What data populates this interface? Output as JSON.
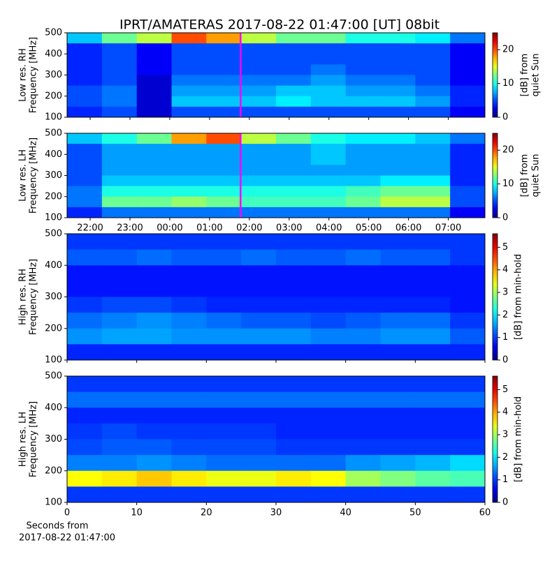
{
  "title": "IPRT/AMATERAS 2017-08-22 01:47:00 [UT]   08bit",
  "chart_data": [
    {
      "type": "heatmap",
      "ylabel": [
        "Low res. RH",
        "Frequency [MHz]"
      ],
      "xlim": [
        21.42,
        31.92
      ],
      "xticks": [
        {
          "value": 22,
          "label": "22:00"
        },
        {
          "value": 23,
          "label": "23:00"
        },
        {
          "value": 24,
          "label": "00:00"
        },
        {
          "value": 25,
          "label": "01:00"
        },
        {
          "value": 26,
          "label": "02:00"
        },
        {
          "value": 27,
          "label": "03:00"
        },
        {
          "value": 28,
          "label": "04:00"
        },
        {
          "value": 29,
          "label": "05:00"
        },
        {
          "value": 30,
          "label": "06:00"
        },
        {
          "value": 31,
          "label": "07:00"
        }
      ],
      "show_xticklabels": false,
      "ylim": [
        100,
        500
      ],
      "yticks": [
        100,
        200,
        300,
        400,
        500
      ],
      "marker_x": 25.78,
      "marker_color": "#ff00ff",
      "clim": [
        0,
        25
      ],
      "cticks": [
        0,
        10,
        20
      ],
      "clabel": [
        "[dB] from",
        "quiet Sun"
      ],
      "z": [
        [
          8,
          12,
          14,
          20,
          18,
          14,
          12,
          12,
          10,
          10,
          9,
          6
        ],
        [
          4,
          5,
          3,
          5,
          5,
          5,
          5,
          5,
          5,
          5,
          5,
          3
        ],
        [
          4,
          5,
          3,
          5,
          5,
          5,
          5,
          5,
          5,
          5,
          5,
          3
        ],
        [
          4,
          5,
          3,
          5,
          5,
          5,
          5,
          6,
          5,
          5,
          5,
          3
        ],
        [
          4,
          5,
          2,
          6,
          6,
          6,
          6,
          7,
          6,
          6,
          5,
          3
        ],
        [
          5,
          6,
          2,
          7,
          7,
          7,
          8,
          8,
          7,
          7,
          6,
          4
        ],
        [
          5,
          6,
          2,
          8,
          8,
          8,
          9,
          8,
          8,
          8,
          7,
          4
        ],
        [
          4,
          5,
          2,
          5,
          5,
          5,
          5,
          5,
          5,
          5,
          5,
          3
        ]
      ]
    },
    {
      "type": "heatmap",
      "ylabel": [
        "Low res. LH",
        "Frequency [MHz]"
      ],
      "xlim": [
        21.42,
        31.92
      ],
      "xticks": [
        {
          "value": 22,
          "label": "22:00"
        },
        {
          "value": 23,
          "label": "23:00"
        },
        {
          "value": 24,
          "label": "00:00"
        },
        {
          "value": 25,
          "label": "01:00"
        },
        {
          "value": 26,
          "label": "02:00"
        },
        {
          "value": 27,
          "label": "03:00"
        },
        {
          "value": 28,
          "label": "04:00"
        },
        {
          "value": 29,
          "label": "05:00"
        },
        {
          "value": 30,
          "label": "06:00"
        },
        {
          "value": 31,
          "label": "07:00"
        }
      ],
      "show_xticklabels": true,
      "ylim": [
        100,
        500
      ],
      "yticks": [
        100,
        200,
        300,
        400,
        500
      ],
      "marker_x": 25.78,
      "marker_color": "#ff00ff",
      "clim": [
        0,
        25
      ],
      "cticks": [
        0,
        10,
        20
      ],
      "clabel": [
        "[dB] from",
        "quiet Sun"
      ],
      "z": [
        [
          8,
          10,
          12,
          18,
          20,
          14,
          12,
          10,
          9,
          9,
          8,
          6
        ],
        [
          5,
          7,
          7,
          7,
          7,
          7,
          7,
          8,
          7,
          7,
          7,
          4
        ],
        [
          5,
          7,
          7,
          7,
          7,
          7,
          7,
          8,
          7,
          7,
          7,
          4
        ],
        [
          5,
          7,
          7,
          7,
          7,
          7,
          7,
          7,
          7,
          7,
          7,
          4
        ],
        [
          5,
          8,
          8,
          8,
          8,
          8,
          8,
          8,
          8,
          9,
          9,
          4
        ],
        [
          6,
          10,
          10,
          10,
          10,
          10,
          10,
          10,
          11,
          12,
          12,
          5
        ],
        [
          6,
          12,
          12,
          13,
          12,
          11,
          11,
          11,
          12,
          14,
          14,
          5
        ],
        [
          4,
          6,
          6,
          6,
          6,
          6,
          6,
          6,
          6,
          6,
          6,
          3
        ]
      ]
    },
    {
      "type": "heatmap",
      "ylabel": [
        "High res. RH",
        "Frequency [MHz]"
      ],
      "xlim": [
        0,
        60
      ],
      "xticks": [
        0,
        10,
        20,
        30,
        40,
        50,
        60
      ],
      "show_xticklabels": false,
      "ylim": [
        100,
        500
      ],
      "yticks": [
        100,
        200,
        300,
        400,
        500
      ],
      "clim": [
        0,
        5.6
      ],
      "cticks": [
        0,
        1,
        2,
        3,
        4,
        5
      ],
      "clabel": [
        "[dB] from min-hold"
      ],
      "z": [
        [
          1.0,
          1.0,
          1.0,
          1.0,
          1.0,
          1.0,
          1.0,
          1.0,
          1.0,
          1.0,
          1.0,
          1.0
        ],
        [
          1.2,
          1.2,
          1.3,
          1.2,
          1.2,
          1.3,
          1.2,
          1.2,
          1.3,
          1.2,
          1.2,
          1.0
        ],
        [
          0.8,
          0.8,
          0.8,
          0.8,
          0.8,
          0.8,
          0.8,
          0.8,
          0.8,
          0.8,
          0.8,
          0.8
        ],
        [
          0.8,
          0.8,
          0.8,
          0.8,
          0.8,
          0.8,
          0.8,
          0.8,
          0.8,
          0.8,
          0.8,
          0.8
        ],
        [
          1.0,
          1.1,
          1.1,
          1.0,
          0.9,
          0.9,
          0.9,
          0.9,
          0.9,
          0.9,
          0.9,
          0.8
        ],
        [
          1.3,
          1.4,
          1.5,
          1.4,
          1.3,
          1.2,
          1.2,
          1.1,
          1.2,
          1.3,
          1.3,
          1.0
        ],
        [
          1.5,
          1.6,
          1.6,
          1.5,
          1.5,
          1.5,
          1.5,
          1.4,
          1.4,
          1.5,
          1.5,
          1.2
        ],
        [
          0.9,
          0.9,
          0.9,
          0.9,
          0.9,
          0.9,
          0.9,
          0.9,
          0.9,
          0.9,
          0.9,
          0.9
        ]
      ]
    },
    {
      "type": "heatmap",
      "ylabel": [
        "High res. LH",
        "Frequency [MHz]"
      ],
      "xlim": [
        0,
        60
      ],
      "xticks": [
        0,
        10,
        20,
        30,
        40,
        50,
        60
      ],
      "show_xticklabels": true,
      "xlabel": [
        "Seconds from",
        "2017-08-22 01:47:00"
      ],
      "ylim": [
        100,
        500
      ],
      "yticks": [
        100,
        200,
        300,
        400,
        500
      ],
      "clim": [
        0,
        5.6
      ],
      "cticks": [
        0,
        1,
        2,
        3,
        4,
        5
      ],
      "clabel": [
        "[dB] from min-hold"
      ],
      "z": [
        [
          1.0,
          1.0,
          1.0,
          1.0,
          1.0,
          1.0,
          1.0,
          1.0,
          1.0,
          1.0,
          1.0,
          1.0
        ],
        [
          1.3,
          1.3,
          1.3,
          1.3,
          1.3,
          1.3,
          1.3,
          1.3,
          1.3,
          1.3,
          1.3,
          1.3
        ],
        [
          0.9,
          0.9,
          0.9,
          0.9,
          0.9,
          0.9,
          0.9,
          0.9,
          0.9,
          0.9,
          0.9,
          0.9
        ],
        [
          1.0,
          1.1,
          1.0,
          1.0,
          1.0,
          1.0,
          0.9,
          0.9,
          0.9,
          0.9,
          0.9,
          0.9
        ],
        [
          1.1,
          1.2,
          1.2,
          1.1,
          1.1,
          1.1,
          1.0,
          1.0,
          1.0,
          1.0,
          1.0,
          1.0
        ],
        [
          1.4,
          1.4,
          1.5,
          1.4,
          1.3,
          1.3,
          1.3,
          1.3,
          1.5,
          1.6,
          1.7,
          1.9
        ],
        [
          3.5,
          3.6,
          3.8,
          3.6,
          3.4,
          3.4,
          3.6,
          3.5,
          3.0,
          2.8,
          2.6,
          2.5
        ],
        [
          1.0,
          1.0,
          1.0,
          1.0,
          1.0,
          1.0,
          1.0,
          1.0,
          1.0,
          1.0,
          1.0,
          1.0
        ]
      ]
    }
  ]
}
